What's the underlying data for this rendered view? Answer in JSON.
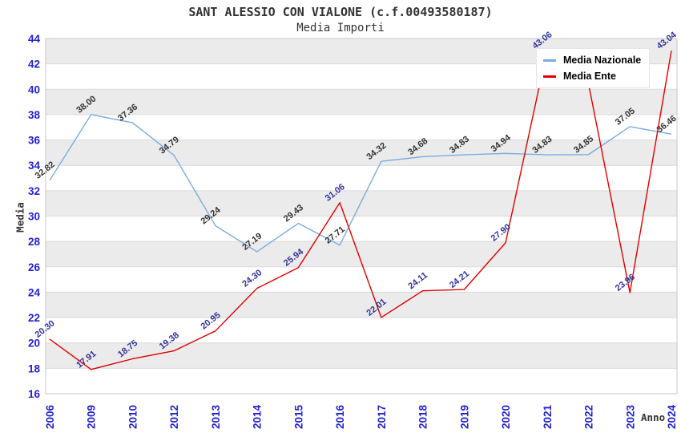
{
  "page": {
    "title": "SANT ALESSIO CON VIALONE (c.f.00493580187)",
    "subtitle": "Media Importi"
  },
  "legend": {
    "items": [
      {
        "label": "Media Nazionale",
        "color": "#7aace0"
      },
      {
        "label": "Media Ente",
        "color": "#dd0000"
      }
    ]
  },
  "axes": {
    "y_title": "Media",
    "x_title": "Anno",
    "y_ticks": [
      44,
      42,
      40,
      38,
      36,
      34,
      32,
      30,
      28,
      26,
      24,
      22,
      20,
      18,
      16
    ],
    "tick_color": "#2222cc"
  },
  "chart_data": {
    "type": "line",
    "title": "SANT ALESSIO CON VIALONE (c.f.00493580187)",
    "subtitle": "Media Importi",
    "xlabel": "Anno",
    "ylabel": "Media",
    "ylim": [
      16,
      44
    ],
    "y_tick_step": 2,
    "grid": true,
    "band_colors": [
      "#ebebeb",
      "#ffffff"
    ],
    "gridline_color": "#d9d9d9",
    "plot_border_color": "#c9c9c9",
    "legend_position": "top-right",
    "categories": [
      "2006",
      "2009",
      "2010",
      "2012",
      "2013",
      "2014",
      "2015",
      "2016",
      "2017",
      "2018",
      "2019",
      "2020",
      "2021",
      "2022",
      "2023",
      "2024"
    ],
    "series": [
      {
        "name": "Media Nazionale",
        "color": "#7aace0",
        "label_color": "#333333",
        "values": [
          32.82,
          38.0,
          37.36,
          34.79,
          29.24,
          27.19,
          29.43,
          27.71,
          34.32,
          34.68,
          34.83,
          34.94,
          34.83,
          34.85,
          37.05,
          36.46
        ],
        "labels": [
          "32.82",
          "38.00",
          "37.36",
          "34.79",
          "29.24",
          "27.19",
          "29.43",
          "27.71",
          "34.32",
          "34.68",
          "34.83",
          "34.94",
          "34.83",
          "34.85",
          "37.05",
          "36.46"
        ]
      },
      {
        "name": "Media Ente",
        "color": "#dd0000",
        "label_color": "#333399",
        "values": [
          20.3,
          17.91,
          18.75,
          19.38,
          20.95,
          24.3,
          25.94,
          31.06,
          22.01,
          24.11,
          24.21,
          27.9,
          43.06,
          40.43,
          23.96,
          43.04
        ],
        "labels": [
          "20.30",
          "17.91",
          "18.75",
          "19.38",
          "20.95",
          "24.30",
          "25.94",
          "31.06",
          "22.01",
          "24.11",
          "24.21",
          "27.90",
          "43.06",
          "",
          "23.96",
          "43.04"
        ]
      }
    ]
  }
}
